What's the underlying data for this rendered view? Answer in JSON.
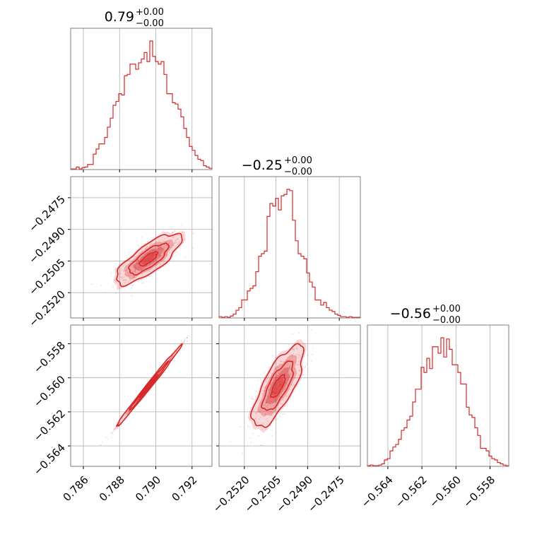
{
  "chart_data": {
    "type": "corner",
    "color": "#d62728",
    "grid": true,
    "parameters": [
      {
        "index": 0,
        "title": {
          "value": "0.79",
          "plus": "+0.00",
          "minus": "−0.00"
        },
        "range": [
          0.7853,
          0.7931
        ],
        "ticks": [
          0.786,
          0.788,
          0.79,
          0.792
        ],
        "tick_labels": [
          "0.786",
          "0.788",
          "0.790",
          "0.792"
        ],
        "hist": [
          0.005,
          0.005,
          0.02,
          0.005,
          0.015,
          0.02,
          0.04,
          0.04,
          0.12,
          0.16,
          0.2,
          0.2,
          0.25,
          0.33,
          0.4,
          0.5,
          0.53,
          0.59,
          0.58,
          0.73,
          0.74,
          0.82,
          0.82,
          0.78,
          0.83,
          0.86,
          0.91,
          0.84,
          1.0,
          0.88,
          0.84,
          0.82,
          0.84,
          0.74,
          0.59,
          0.59,
          0.52,
          0.51,
          0.47,
          0.41,
          0.32,
          0.25,
          0.18,
          0.15,
          0.11,
          0.08,
          0.07,
          0.03,
          0.02,
          0.01
        ]
      },
      {
        "index": 1,
        "title": {
          "value": "−0.25",
          "plus": "+0.00",
          "minus": "−0.00"
        },
        "range": [
          -0.2532,
          -0.2465
        ],
        "ticks": [
          -0.252,
          -0.2505,
          -0.249,
          -0.2475
        ],
        "tick_labels": [
          "−0.2520",
          "−0.2505",
          "−0.2490",
          "−0.2475"
        ],
        "hist": [
          0.01,
          0.005,
          0.01,
          0.005,
          0.015,
          0.03,
          0.06,
          0.08,
          0.14,
          0.14,
          0.21,
          0.23,
          0.25,
          0.36,
          0.48,
          0.5,
          0.52,
          0.79,
          0.89,
          0.87,
          0.93,
          0.84,
          0.95,
          0.96,
          1.0,
          0.99,
          0.76,
          0.6,
          0.5,
          0.48,
          0.46,
          0.35,
          0.28,
          0.24,
          0.14,
          0.14,
          0.1,
          0.12,
          0.08,
          0.06,
          0.05,
          0.03,
          0.02,
          0.01,
          0.01,
          0.005,
          0.01,
          0.005,
          0.005,
          0.005
        ]
      },
      {
        "index": 2,
        "title": {
          "value": "−0.56",
          "plus": "+0.00",
          "minus": "−0.00"
        },
        "range": [
          -0.5652,
          -0.5569
        ],
        "ticks": [
          -0.564,
          -0.562,
          -0.56,
          -0.558
        ],
        "tick_labels": [
          "−0.564",
          "−0.562",
          "−0.560",
          "−0.558"
        ],
        "hist": [
          0.005,
          0.01,
          0.005,
          0.005,
          0.01,
          0.02,
          0.05,
          0.06,
          0.12,
          0.15,
          0.17,
          0.21,
          0.28,
          0.3,
          0.36,
          0.39,
          0.5,
          0.6,
          0.6,
          0.77,
          0.73,
          0.84,
          0.76,
          0.93,
          0.93,
          0.88,
          1.0,
          0.85,
          0.99,
          0.91,
          0.79,
          0.79,
          0.73,
          0.64,
          0.64,
          0.46,
          0.4,
          0.38,
          0.3,
          0.24,
          0.14,
          0.14,
          0.12,
          0.08,
          0.06,
          0.05,
          0.03,
          0.02,
          0.01,
          0.005
        ]
      }
    ],
    "pairs": [
      {
        "x": 0,
        "y": 1,
        "center": [
          0.7896,
          -0.2504
        ],
        "sigma": [
          0.0009,
          0.0006
        ],
        "rho": 0.78
      },
      {
        "x": 0,
        "y": 2,
        "center": [
          0.7896,
          -0.5605
        ],
        "sigma": [
          0.0009,
          0.0012
        ],
        "rho": 0.995
      },
      {
        "x": 1,
        "y": 2,
        "center": [
          -0.2504,
          -0.5605
        ],
        "sigma": [
          0.0006,
          0.0012
        ],
        "rho": 0.75
      }
    ]
  }
}
